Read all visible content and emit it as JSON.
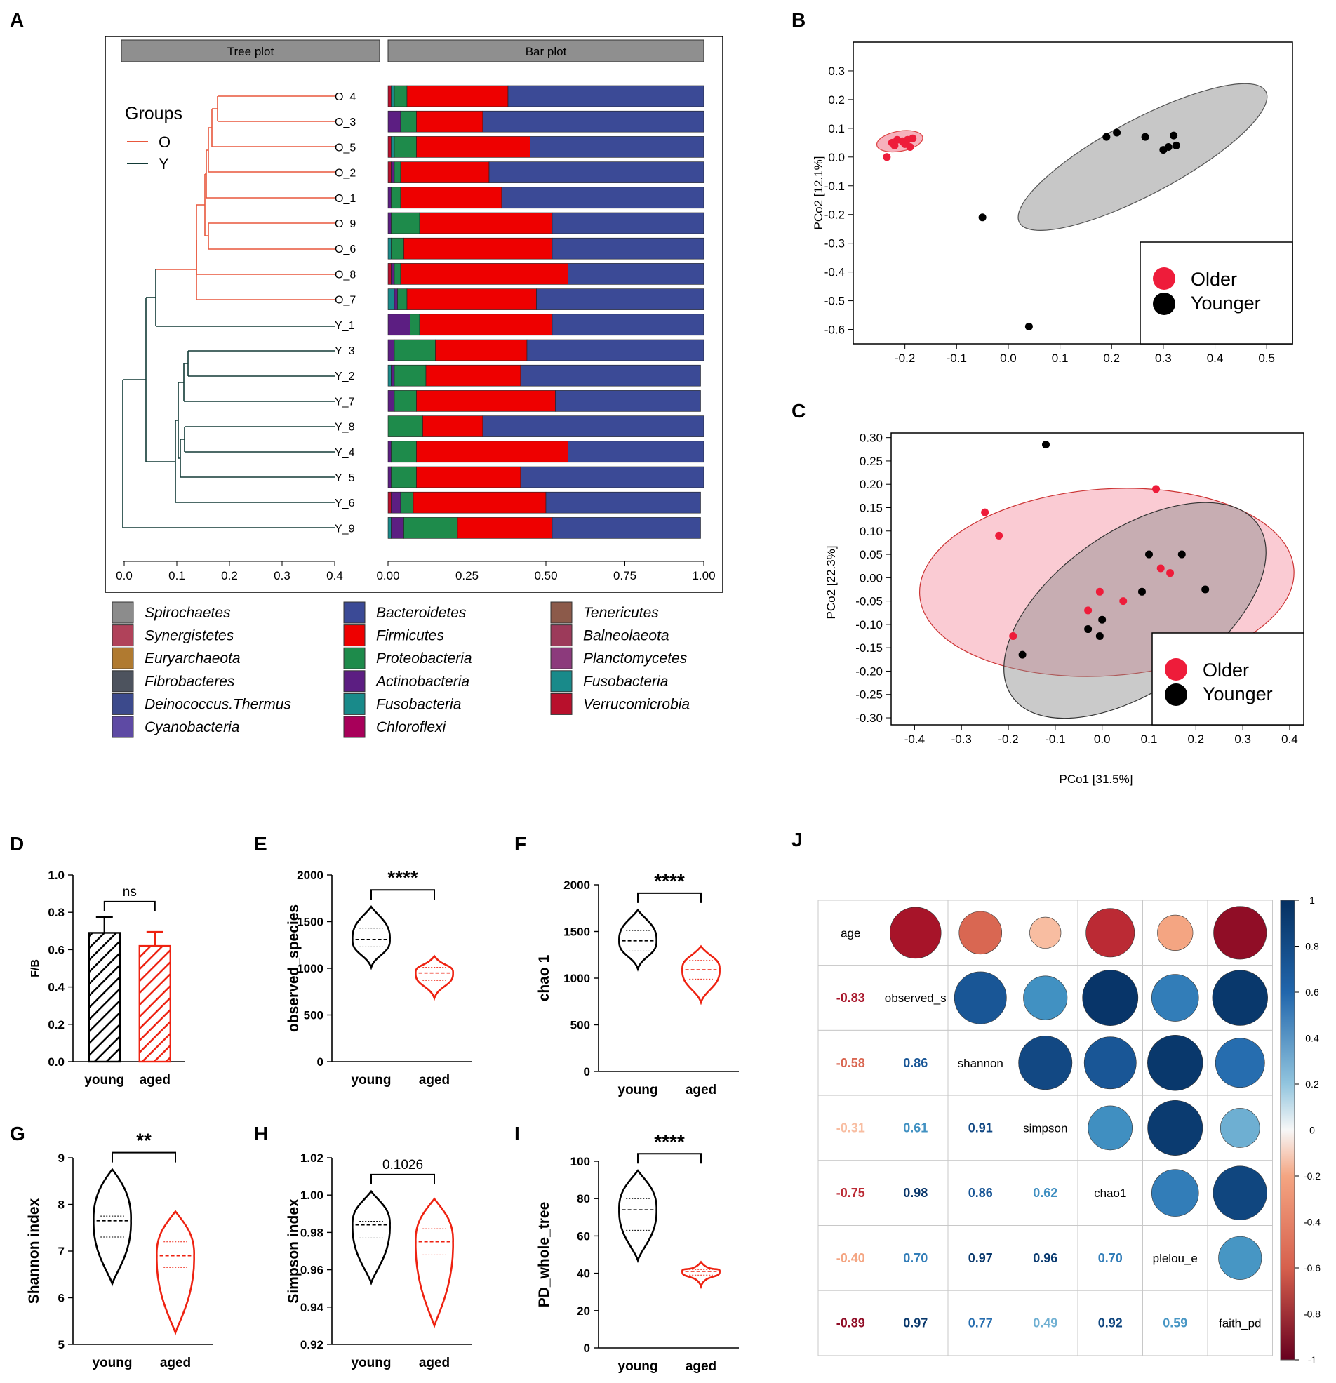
{
  "panel_letters": [
    "A",
    "B",
    "C",
    "D",
    "E",
    "F",
    "G",
    "H",
    "I",
    "J"
  ],
  "chart_data": [
    {
      "panel": "A",
      "type": "bar",
      "strip_labels": [
        "Tree plot",
        "Bar plot"
      ],
      "groups_title": "Groups",
      "groups": [
        {
          "name": "O",
          "color": "#e8573c"
        },
        {
          "name": "Y",
          "color": "#123a36"
        }
      ],
      "samples": [
        "O_4",
        "O_3",
        "O_5",
        "O_2",
        "O_1",
        "O_9",
        "O_6",
        "O_8",
        "O_7",
        "Y_1",
        "Y_3",
        "Y_2",
        "Y_7",
        "Y_8",
        "Y_4",
        "Y_5",
        "Y_6",
        "Y_9"
      ],
      "tree_xticks": [
        "0.0",
        "0.1",
        "0.2",
        "0.3",
        "0.4"
      ],
      "bar_xticks": [
        "0.00",
        "0.25",
        "0.50",
        "0.75",
        "1.00"
      ],
      "stack_order": [
        "Verrucomicrobia",
        "Fusobacteria",
        "Actinobacteria",
        "Proteobacteria",
        "Firmicutes",
        "Bacteroidetes"
      ],
      "stacks": [
        [
          0.01,
          0.01,
          0.0,
          0.04,
          0.32,
          0.62
        ],
        [
          0.0,
          0.0,
          0.04,
          0.05,
          0.21,
          0.7
        ],
        [
          0.01,
          0.01,
          0.0,
          0.07,
          0.36,
          0.55
        ],
        [
          0.01,
          0.0,
          0.01,
          0.02,
          0.28,
          0.68
        ],
        [
          0.0,
          0.0,
          0.01,
          0.03,
          0.32,
          0.64
        ],
        [
          0.0,
          0.0,
          0.01,
          0.09,
          0.42,
          0.48
        ],
        [
          0.0,
          0.01,
          0.0,
          0.04,
          0.47,
          0.48
        ],
        [
          0.01,
          0.0,
          0.01,
          0.02,
          0.53,
          0.43
        ],
        [
          0.0,
          0.02,
          0.01,
          0.03,
          0.41,
          0.53
        ],
        [
          0.0,
          0.0,
          0.07,
          0.03,
          0.42,
          0.48
        ],
        [
          0.0,
          0.0,
          0.02,
          0.13,
          0.29,
          0.56
        ],
        [
          0.0,
          0.01,
          0.01,
          0.1,
          0.3,
          0.57
        ],
        [
          0.0,
          0.0,
          0.02,
          0.07,
          0.44,
          0.46
        ],
        [
          0.0,
          0.0,
          0.0,
          0.11,
          0.19,
          0.7
        ],
        [
          0.0,
          0.0,
          0.01,
          0.08,
          0.48,
          0.43
        ],
        [
          0.0,
          0.0,
          0.01,
          0.08,
          0.33,
          0.58
        ],
        [
          0.01,
          0.0,
          0.03,
          0.04,
          0.42,
          0.49
        ],
        [
          0.0,
          0.01,
          0.04,
          0.17,
          0.3,
          0.47
        ]
      ],
      "legend": [
        {
          "name": "Spirochaetes",
          "color": "#8c8c8c"
        },
        {
          "name": "Synergistetes",
          "color": "#b0425a"
        },
        {
          "name": "Euryarchaeota",
          "color": "#b07a30"
        },
        {
          "name": "Fibrobacteres",
          "color": "#4d535e"
        },
        {
          "name": "Deinococcus.Thermus",
          "color": "#3c4a8c"
        },
        {
          "name": "Cyanobacteria",
          "color": "#5e4aa4"
        },
        {
          "name": "Bacteroidetes",
          "color": "#3b4a96"
        },
        {
          "name": "Firmicutes",
          "color": "#ee0000"
        },
        {
          "name": "Proteobacteria",
          "color": "#1e8b4b"
        },
        {
          "name": "Actinobacteria",
          "color": "#5c1e82"
        },
        {
          "name": "Fusobacteria",
          "color": "#198a8a"
        },
        {
          "name": "Chloroflexi",
          "color": "#a8005a"
        },
        {
          "name": "Tenericutes",
          "color": "#8c5a4a"
        },
        {
          "name": "Balneolaeota",
          "color": "#9c3a5a"
        },
        {
          "name": "Planctomycetes",
          "color": "#8c3a7c"
        },
        {
          "name": "Fusobacteria",
          "color": "#198a8a"
        },
        {
          "name": "Verrucomicrobia",
          "color": "#b8102c"
        }
      ]
    },
    {
      "panel": "B",
      "type": "scatter",
      "ylabel": "PCo2 [12.1%]",
      "xlim": [
        -0.3,
        0.55
      ],
      "ylim": [
        -0.65,
        0.4
      ],
      "xticks": [
        "-0.2",
        "-0.1",
        "0.0",
        "0.1",
        "0.2",
        "0.3",
        "0.4",
        "0.5"
      ],
      "yticks": [
        "0.3",
        "0.2",
        "0.1",
        "0.0",
        "-0.1",
        "-0.2",
        "-0.3",
        "-0.4",
        "-0.5",
        "-0.6"
      ],
      "legend": [
        "Older",
        "Younger"
      ],
      "series": [
        {
          "name": "Older",
          "color": "#ee1c3a",
          "x": [
            -0.235,
            -0.225,
            -0.215,
            -0.205,
            -0.195,
            -0.185,
            -0.22,
            -0.2,
            -0.19
          ],
          "y": [
            0.0,
            0.05,
            0.06,
            0.055,
            0.06,
            0.065,
            0.04,
            0.045,
            0.035
          ]
        },
        {
          "name": "Younger",
          "color": "#000000",
          "x": [
            0.19,
            0.21,
            0.265,
            0.3,
            0.31,
            0.32,
            0.325,
            -0.05,
            0.04
          ],
          "y": [
            0.07,
            0.085,
            0.07,
            0.025,
            0.035,
            0.075,
            0.04,
            -0.21,
            -0.59
          ]
        }
      ]
    },
    {
      "panel": "C",
      "type": "scatter",
      "xlabel": "PCo1 [31.5%]",
      "ylabel": "PCo2 [22.3%]",
      "xlim": [
        -0.45,
        0.43
      ],
      "ylim": [
        -0.315,
        0.31
      ],
      "xticks": [
        "-0.4",
        "-0.3",
        "-0.2",
        "-0.1",
        "0.0",
        "0.1",
        "0.2",
        "0.3",
        "0.4"
      ],
      "yticks": [
        "0.30",
        "0.25",
        "0.20",
        "0.15",
        "0.10",
        "0.05",
        "0.00",
        "-0.05",
        "-0.10",
        "-0.15",
        "-0.20",
        "-0.25",
        "-0.30"
      ],
      "legend": [
        "Older",
        "Younger"
      ],
      "series": [
        {
          "name": "Older",
          "color": "#ee1c3a",
          "x": [
            -0.25,
            -0.22,
            0.115,
            0.125,
            0.145,
            -0.005,
            0.045,
            -0.03,
            -0.19
          ],
          "y": [
            0.14,
            0.09,
            0.19,
            0.02,
            0.01,
            -0.03,
            -0.05,
            -0.07,
            -0.125
          ]
        },
        {
          "name": "Younger",
          "color": "#000000",
          "x": [
            -0.12,
            0.1,
            0.17,
            0.085,
            0.22,
            0.0,
            -0.03,
            -0.005,
            -0.17
          ],
          "y": [
            0.285,
            0.05,
            0.05,
            -0.03,
            -0.025,
            -0.09,
            -0.11,
            -0.125,
            -0.165
          ]
        }
      ]
    },
    {
      "panel": "D",
      "type": "bar",
      "ylabel": "F/B",
      "categories": [
        "young",
        "aged"
      ],
      "values": [
        0.69,
        0.62
      ],
      "errors": [
        0.085,
        0.075
      ],
      "ylim": [
        0,
        1.0
      ],
      "yticks": [
        "0.0",
        "0.2",
        "0.4",
        "0.6",
        "0.8",
        "1.0"
      ],
      "significance": "ns"
    },
    {
      "panel": "E",
      "type": "violin",
      "ylabel": "observed_species",
      "categories": [
        "young",
        "aged"
      ],
      "ylim": [
        0,
        2000
      ],
      "yticks": [
        "0",
        "500",
        "1000",
        "1500",
        "2000"
      ],
      "young": {
        "min": 1010,
        "max": 1660,
        "median": 1310,
        "q1": 1230,
        "q3": 1430
      },
      "aged": {
        "min": 680,
        "max": 1130,
        "median": 950,
        "q1": 870,
        "q3": 1010
      },
      "significance": "****"
    },
    {
      "panel": "F",
      "type": "violin",
      "ylabel": "chao 1",
      "categories": [
        "young",
        "aged"
      ],
      "ylim": [
        0,
        2000
      ],
      "yticks": [
        "0",
        "500",
        "1000",
        "1500",
        "2000"
      ],
      "young": {
        "min": 1100,
        "max": 1730,
        "median": 1400,
        "q1": 1290,
        "q3": 1510
      },
      "aged": {
        "min": 740,
        "max": 1340,
        "median": 1090,
        "q1": 990,
        "q3": 1190
      },
      "significance": "****"
    },
    {
      "panel": "G",
      "type": "violin",
      "ylabel": "Shannon index",
      "categories": [
        "young",
        "aged"
      ],
      "ylim": [
        5,
        9
      ],
      "yticks": [
        "5",
        "6",
        "7",
        "8",
        "9"
      ],
      "young": {
        "min": 6.3,
        "max": 8.75,
        "median": 7.65,
        "q1": 7.3,
        "q3": 7.75
      },
      "aged": {
        "min": 5.25,
        "max": 7.85,
        "median": 6.9,
        "q1": 6.65,
        "q3": 7.2
      },
      "significance": "**"
    },
    {
      "panel": "H",
      "type": "violin",
      "ylabel": "Simpson index",
      "categories": [
        "young",
        "aged"
      ],
      "ylim": [
        0.92,
        1.02
      ],
      "yticks": [
        "0.92",
        "0.94",
        "0.96",
        "0.98",
        "1.00",
        "1.02"
      ],
      "young": {
        "min": 0.953,
        "max": 1.002,
        "median": 0.984,
        "q1": 0.977,
        "q3": 0.986
      },
      "aged": {
        "min": 0.93,
        "max": 0.998,
        "median": 0.975,
        "q1": 0.968,
        "q3": 0.982
      },
      "significance": "0.1026"
    },
    {
      "panel": "I",
      "type": "violin",
      "ylabel": "PD_whole_tree",
      "categories": [
        "young",
        "aged"
      ],
      "ylim": [
        0,
        100
      ],
      "yticks": [
        "0",
        "20",
        "40",
        "60",
        "80",
        "100"
      ],
      "young": {
        "min": 47,
        "max": 95,
        "median": 74,
        "q1": 63,
        "q3": 80
      },
      "aged": {
        "min": 33,
        "max": 46,
        "median": 41,
        "q1": 39,
        "q3": 42
      },
      "significance": "****"
    },
    {
      "panel": "J",
      "type": "heatmap",
      "variables": [
        "age",
        "observed_s",
        "shannon",
        "simpson",
        "chao1",
        "plelou_e",
        "faith_pd"
      ],
      "lower_labels": [
        [],
        [
          "-0.83"
        ],
        [
          "-0.58",
          "0.86"
        ],
        [
          "-0.31",
          "0.61",
          "0.91"
        ],
        [
          "-0.75",
          "0.98",
          "0.86",
          "0.62"
        ],
        [
          "-0.40",
          "0.70",
          "0.97",
          "0.96",
          "0.70"
        ],
        [
          "-0.89",
          "0.97",
          "0.77",
          "0.49",
          "0.92",
          "0.59"
        ]
      ],
      "colorbar_ticks": [
        "1",
        "0.8",
        "0.6",
        "0.4",
        "0.2",
        "0",
        "-0.2",
        "-0.4",
        "-0.6",
        "-0.8",
        "-1"
      ]
    }
  ]
}
